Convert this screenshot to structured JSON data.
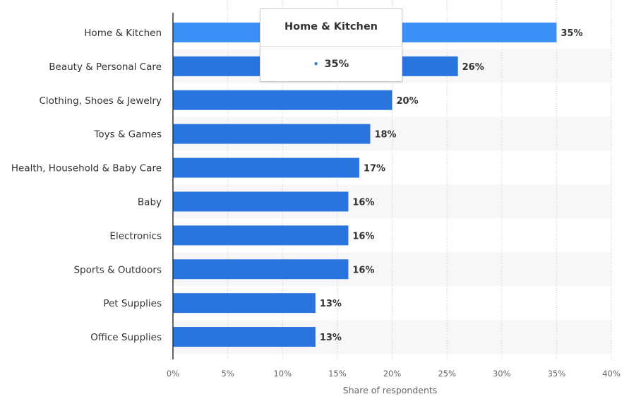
{
  "chart_data": {
    "type": "bar",
    "orientation": "horizontal",
    "categories": [
      "Home & Kitchen",
      "Beauty & Personal Care",
      "Clothing, Shoes & Jewelry",
      "Toys & Games",
      "Health, Household & Baby Care",
      "Baby",
      "Electronics",
      "Sports & Outdoors",
      "Pet Supplies",
      "Office Supplies"
    ],
    "values": [
      35,
      26,
      20,
      18,
      17,
      16,
      16,
      16,
      13,
      13
    ],
    "value_labels": [
      "35%",
      "26%",
      "20%",
      "18%",
      "17%",
      "16%",
      "16%",
      "16%",
      "13%",
      "13%"
    ],
    "xlabel": "Share of respondents",
    "ylabel": "",
    "xlim": [
      0,
      40
    ],
    "xticks": [
      0,
      5,
      10,
      15,
      20,
      25,
      30,
      35,
      40
    ],
    "xtick_labels": [
      "0%",
      "5%",
      "10%",
      "15%",
      "20%",
      "25%",
      "30%",
      "35%",
      "40%"
    ],
    "grid": true,
    "highlighted_index": 0,
    "colors": {
      "bar": "#2a74e0",
      "bar_highlight": "#3b8ff5",
      "band": "#f7f7f9",
      "grid": "#cccccc",
      "axis": "#333333"
    }
  },
  "tooltip": {
    "title": "Home & Kitchen",
    "value": "35%",
    "bullet": "•"
  }
}
